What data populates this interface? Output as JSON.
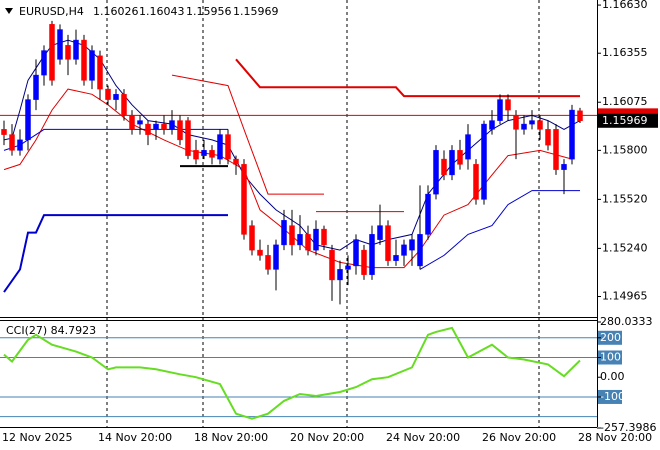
{
  "chart_data": {
    "type": "candlestick",
    "symbol": "EURUSD,H4",
    "categories": [
      "12 Nov 2025",
      null,
      null,
      null,
      null,
      null,
      null,
      null,
      null,
      null,
      null,
      null,
      "14 Nov 20:00",
      null,
      null,
      null,
      null,
      null,
      null,
      null,
      null,
      null,
      null,
      null,
      "18 Nov 20:00",
      null,
      null,
      null,
      null,
      null,
      null,
      null,
      null,
      null,
      null,
      null,
      "20 Nov 20:00",
      null,
      null,
      null,
      null,
      null,
      null,
      null,
      null,
      null,
      null,
      null,
      "24 Nov 20:00",
      null,
      null,
      null,
      null,
      null,
      null,
      null,
      null,
      null,
      null,
      null,
      "26 Nov 20:00",
      null,
      null,
      null,
      null,
      null,
      null,
      null,
      null,
      null,
      null,
      null,
      "28 Nov 20:00"
    ],
    "open": [
      1.1592,
      1.1589,
      1.158,
      1.1586,
      1.1609,
      1.1623,
      1.1652,
      1.1632,
      1.164,
      1.1632,
      1.1643,
      1.162,
      1.1634,
      1.1615,
      1.1609,
      1.1612,
      1.16,
      1.1595,
      1.1595,
      1.1592,
      1.1595,
      1.1592,
      1.1597,
      1.1597,
      1.158,
      1.1577,
      1.158,
      1.1575,
      1.1589,
      1.1575,
      1.1572,
      1.1537,
      1.1523,
      1.152,
      1.1512,
      1.1526,
      1.1537,
      1.1526,
      1.1532,
      1.1523,
      1.1535,
      1.1523,
      1.1506,
      1.1512,
      1.1514,
      1.1523,
      1.1509,
      1.1529,
      1.1537,
      1.1517,
      1.152,
      1.1523,
      1.1514,
      1.1532,
      1.1555,
      1.1575,
      1.1566,
      1.158,
      1.1575,
      1.1572,
      1.1552,
      1.1592,
      1.1597,
      1.1609,
      1.16,
      1.1592,
      1.1595,
      1.1597,
      1.1592,
      1.1592,
      1.1569,
      1.1575,
      1.16026
    ],
    "high": [
      1.1597,
      1.1595,
      1.1592,
      1.1612,
      1.1632,
      1.164,
      1.1654,
      1.1652,
      1.1646,
      1.1649,
      1.1646,
      1.164,
      1.1637,
      1.1617,
      1.1615,
      1.1615,
      1.1603,
      1.16,
      1.1597,
      1.1597,
      1.16,
      1.1603,
      1.16,
      1.1599,
      1.1586,
      1.1586,
      1.1583,
      1.1592,
      1.1592,
      1.1577,
      1.1575,
      1.154,
      1.1529,
      1.1526,
      1.1529,
      1.1546,
      1.1546,
      1.1543,
      1.1537,
      1.154,
      1.1537,
      1.1526,
      1.1517,
      1.152,
      1.1532,
      1.1526,
      1.1537,
      1.1549,
      1.154,
      1.1529,
      1.1529,
      1.1532,
      1.156,
      1.156,
      1.1583,
      1.158,
      1.1583,
      1.1586,
      1.1595,
      1.1575,
      1.1597,
      1.1603,
      1.1612,
      1.1612,
      1.1603,
      1.16,
      1.1603,
      1.16,
      1.1597,
      1.1595,
      1.1575,
      1.1606,
      1.16043
    ],
    "low": [
      1.1583,
      1.1577,
      1.1577,
      1.158,
      1.1603,
      1.1617,
      1.1617,
      1.1629,
      1.1623,
      1.1629,
      1.1617,
      1.1615,
      1.1609,
      1.1606,
      1.1603,
      1.1597,
      1.1589,
      1.1589,
      1.1583,
      1.1586,
      1.1589,
      1.1589,
      1.1583,
      1.1575,
      1.1572,
      1.1575,
      1.1572,
      1.1572,
      1.1572,
      1.1566,
      1.1529,
      1.152,
      1.1517,
      1.1509,
      1.15,
      1.1523,
      1.152,
      1.1523,
      1.152,
      1.152,
      1.1523,
      1.1494,
      1.1492,
      1.1503,
      1.1509,
      1.1506,
      1.1506,
      1.1526,
      1.1514,
      1.1514,
      1.1514,
      1.1514,
      1.1512,
      1.1529,
      1.1552,
      1.1563,
      1.1563,
      1.1569,
      1.1569,
      1.1549,
      1.1549,
      1.1589,
      1.1595,
      1.1597,
      1.1575,
      1.1589,
      1.1592,
      1.1586,
      1.158,
      1.1566,
      1.1555,
      1.1572,
      1.15956
    ],
    "close": [
      1.1589,
      1.158,
      1.1586,
      1.1609,
      1.1623,
      1.1637,
      1.162,
      1.1649,
      1.1632,
      1.1643,
      1.162,
      1.1637,
      1.1615,
      1.1609,
      1.1612,
      1.16,
      1.1592,
      1.1597,
      1.1589,
      1.1595,
      1.1592,
      1.1597,
      1.1586,
      1.1577,
      1.1575,
      1.158,
      1.1576,
      1.1589,
      1.1575,
      1.1572,
      1.1532,
      1.1523,
      1.152,
      1.1512,
      1.1526,
      1.154,
      1.1526,
      1.1532,
      1.1523,
      1.1535,
      1.1526,
      1.1506,
      1.1512,
      1.1514,
      1.1529,
      1.1509,
      1.1532,
      1.1537,
      1.1517,
      1.152,
      1.1526,
      1.1529,
      1.1532,
      1.1555,
      1.158,
      1.1566,
      1.158,
      1.1572,
      1.1589,
      1.1552,
      1.1595,
      1.1597,
      1.1609,
      1.1603,
      1.1592,
      1.1595,
      1.1597,
      1.1592,
      1.1583,
      1.1569,
      1.1572,
      1.1603,
      1.15969
    ],
    "up_color": "#0000ff",
    "down_color": "#ff0000",
    "ylim": [
      1.14848,
      1.16659
    ],
    "yticks": [
      {
        "value": 1.1663,
        "label": "1.16630"
      },
      {
        "value": 1.16355,
        "label": "1.16355"
      },
      {
        "value": 1.16075,
        "label": "1.16075"
      },
      {
        "value": 1.158,
        "label": "1.15800"
      },
      {
        "value": 1.1552,
        "label": "1.15520"
      },
      {
        "value": 1.1524,
        "label": "1.15240"
      },
      {
        "value": 1.14965,
        "label": "1.14965"
      }
    ],
    "hline": {
      "value": 1.16,
      "color": "#e00000"
    },
    "overlays": [
      {
        "color": "#0000cc",
        "width": 2,
        "x": [
          0,
          2,
          3,
          4,
          5,
          28
        ],
        "values": [
          1.1499,
          1.1512,
          1.1533,
          1.1533,
          1.1543,
          1.1543
        ]
      },
      {
        "color": "#e00000",
        "width": 2,
        "x": [
          29,
          32,
          49,
          50,
          72
        ],
        "values": [
          1.1632,
          1.1616,
          1.1616,
          1.1611,
          1.1611
        ]
      },
      {
        "color": "#e00000",
        "width": 1,
        "x": [
          39,
          50
        ],
        "values": [
          1.1545,
          1.1545
        ]
      },
      {
        "color": "#000000",
        "width": 2,
        "x": [
          22,
          28
        ],
        "values": [
          1.1571,
          1.1571
        ]
      },
      {
        "color": "#000080",
        "width": 1,
        "x": [
          0,
          1,
          2,
          3,
          5,
          6,
          8,
          10,
          12,
          14,
          16,
          18,
          21,
          23,
          26,
          28,
          30,
          32,
          34,
          37,
          39,
          42,
          44,
          46,
          48,
          51,
          53,
          56,
          58,
          61,
          63,
          66,
          68,
          70,
          72
        ],
        "values": [
          1.1586,
          1.1587,
          1.1603,
          1.162,
          1.1634,
          1.164,
          1.1643,
          1.164,
          1.1632,
          1.1617,
          1.1606,
          1.1597,
          1.1595,
          1.1589,
          1.1586,
          1.1583,
          1.1566,
          1.1555,
          1.1546,
          1.1537,
          1.1526,
          1.1523,
          1.1529,
          1.1526,
          1.1529,
          1.1532,
          1.1555,
          1.1572,
          1.158,
          1.1592,
          1.1597,
          1.16,
          1.1597,
          1.1592,
          1.1597
        ]
      },
      {
        "color": "#e00000",
        "width": 1,
        "x": [
          0,
          2,
          4,
          6,
          8,
          11,
          13,
          16,
          20,
          23,
          27,
          30,
          32,
          35,
          38,
          42,
          46,
          50,
          52,
          55,
          58,
          61,
          63,
          67,
          71
        ],
        "values": [
          1.1569,
          1.1572,
          1.1586,
          1.1603,
          1.1615,
          1.1612,
          1.1606,
          1.1595,
          1.1586,
          1.158,
          1.1577,
          1.1569,
          1.1546,
          1.1535,
          1.1523,
          1.1516,
          1.1513,
          1.1513,
          1.1523,
          1.1543,
          1.1549,
          1.1566,
          1.1577,
          1.158,
          1.1575
        ]
      },
      {
        "color": "#0000cc",
        "width": 1,
        "x": [
          0,
          2,
          5,
          28
        ],
        "values": [
          1.158,
          1.1583,
          1.1592,
          1.1592
        ]
      },
      {
        "color": "#0000cc",
        "width": 1,
        "x": [
          52,
          55,
          58,
          61,
          63,
          66,
          72
        ],
        "values": [
          1.1512,
          1.152,
          1.1532,
          1.1537,
          1.1549,
          1.1557,
          1.1557
        ]
      },
      {
        "color": "#e00000",
        "width": 1,
        "x": [
          21,
          28,
          30,
          33,
          40
        ],
        "values": [
          1.1623,
          1.1617,
          1.1592,
          1.1555,
          1.1555
        ]
      }
    ],
    "cci": {
      "title": "CCI(27) 84.7923",
      "color": "#66dd22",
      "ylim": [
        -257.3986,
        280.0333
      ],
      "yticks": [
        {
          "value": 280.0333,
          "label": "280.0333"
        },
        200,
        100,
        {
          "value": 0,
          "label": "0.00"
        },
        -100,
        {
          "value": -257.3986,
          "label": "-257.3986"
        }
      ],
      "levels": [
        200,
        100,
        -100,
        -200
      ],
      "level_color": "#4682b4",
      "x": [
        0,
        1,
        3,
        4,
        6,
        9,
        11,
        13,
        14,
        17,
        19,
        22,
        24,
        27,
        29,
        31,
        33,
        35,
        37,
        39,
        42,
        44,
        46,
        48,
        51,
        53,
        54,
        56,
        58,
        61,
        63,
        65,
        68,
        70,
        72
      ],
      "values": [
        115,
        80,
        190,
        215,
        165,
        130,
        100,
        40,
        50,
        50,
        40,
        15,
        0,
        -35,
        -185,
        -210,
        -185,
        -120,
        -85,
        -95,
        -75,
        -50,
        -10,
        0,
        50,
        215,
        230,
        250,
        100,
        165,
        100,
        90,
        65,
        5,
        84.7923
      ]
    }
  }
}
